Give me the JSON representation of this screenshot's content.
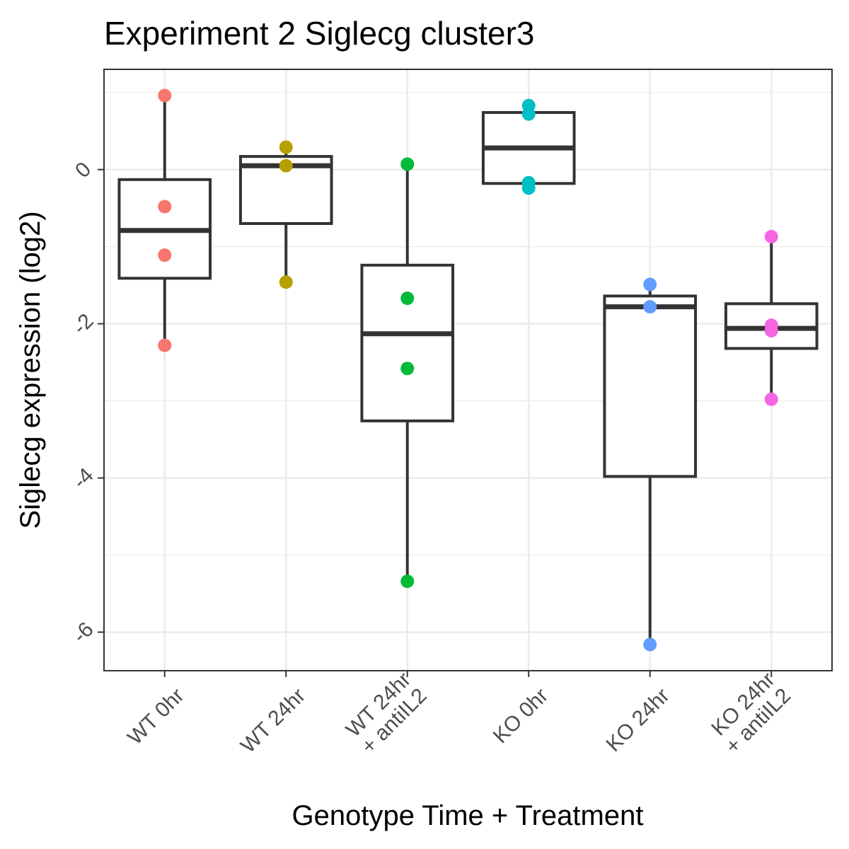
{
  "chart_data": {
    "type": "boxplot",
    "title": "Experiment 2 Siglecg cluster3",
    "xlabel": "Genotype Time + Treatment",
    "ylabel": "Siglecg expression (log2)",
    "ylim": [
      -6.5,
      1.3
    ],
    "yticks": [
      0,
      -2,
      -4,
      -6
    ],
    "ytick_labels": [
      "0",
      "-2",
      "-4",
      "-6"
    ],
    "grid": true,
    "groups": [
      {
        "label": [
          "WT 0hr"
        ],
        "color": "#F8766D",
        "box": {
          "whisker_low": -2.28,
          "q1": -1.41,
          "median": -0.79,
          "q3": -0.13,
          "whisker_high": 0.96
        },
        "points": [
          0.96,
          -0.48,
          -1.11,
          -2.28
        ]
      },
      {
        "label": [
          "WT 24hr"
        ],
        "color": "#B79F00",
        "box": {
          "whisker_low": -1.46,
          "q1": -0.7,
          "median": 0.05,
          "q3": 0.17,
          "whisker_high": 0.29
        },
        "points": [
          0.29,
          0.05,
          -1.46
        ]
      },
      {
        "label": [
          "WT 24hr",
          "+ antiIL2"
        ],
        "color": "#00BA38",
        "box": {
          "whisker_low": -5.34,
          "q1": -3.26,
          "median": -2.13,
          "q3": -1.24,
          "whisker_high": 0.07
        },
        "points": [
          0.07,
          -1.67,
          -2.58,
          -5.34
        ]
      },
      {
        "label": [
          "KO 0hr"
        ],
        "color": "#00BFC4",
        "box": {
          "whisker_low": -0.24,
          "q1": -0.18,
          "median": 0.28,
          "q3": 0.74,
          "whisker_high": 0.83
        },
        "points": [
          0.83,
          0.72,
          -0.17,
          -0.24
        ]
      },
      {
        "label": [
          "KO 24hr"
        ],
        "color": "#619CFF",
        "box": {
          "whisker_low": -6.16,
          "q1": -3.98,
          "median": -1.78,
          "q3": -1.64,
          "whisker_high": -1.49
        },
        "points": [
          -1.49,
          -1.78,
          -6.16
        ]
      },
      {
        "label": [
          "KO 24hr",
          "+ antiIL2"
        ],
        "color": "#F564E3",
        "box": {
          "whisker_low": -2.98,
          "q1": -2.32,
          "median": -2.06,
          "q3": -1.74,
          "whisker_high": -0.87
        },
        "points": [
          -0.87,
          -2.02,
          -2.09,
          -2.98
        ]
      }
    ]
  }
}
